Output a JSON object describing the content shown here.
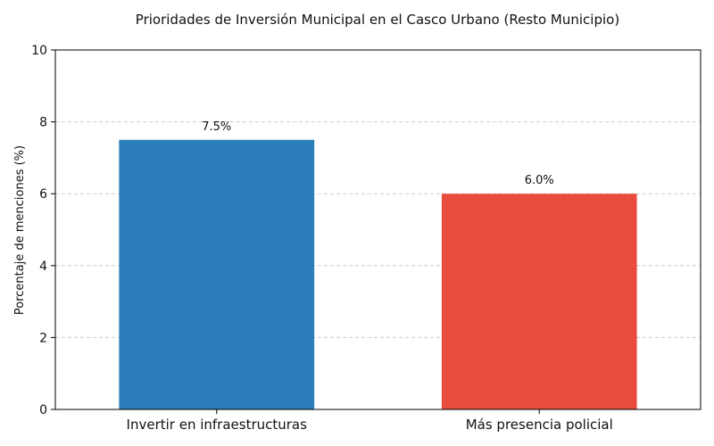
{
  "chart_data": {
    "type": "bar",
    "title": "Prioridades de Inversión Municipal en el Casco Urbano (Resto Municipio)",
    "xlabel": "",
    "ylabel": "Porcentaje de menciones (%)",
    "categories": [
      "Invertir en infraestructuras",
      "Más presencia policial"
    ],
    "values": [
      7.5,
      6.0
    ],
    "data_labels": [
      "7.5%",
      "6.0%"
    ],
    "ylim": [
      0,
      10
    ],
    "yticks": [
      0,
      2,
      4,
      6,
      8,
      10
    ],
    "grid": "y-dashed",
    "legend": "none",
    "colors": {
      "bars": [
        "#2a7db9",
        "#e74c3c"
      ],
      "grid": "#cccccc",
      "axis": "#000000"
    }
  }
}
